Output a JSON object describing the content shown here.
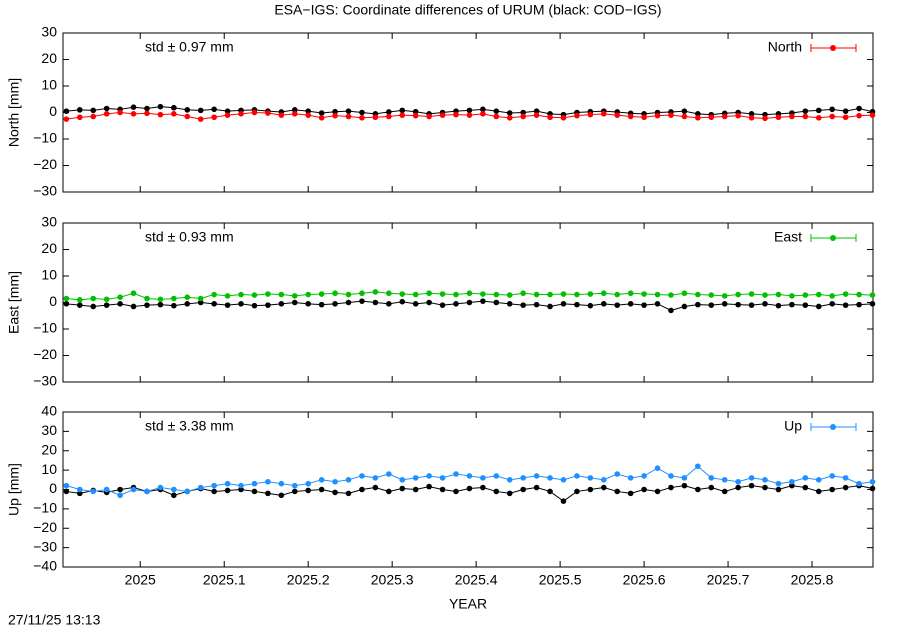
{
  "title": "ESA−IGS: Coordinate differences of URUM (black: COD−IGS)",
  "footer": "27/11/25 13:13",
  "chart_data": [
    {
      "type": "line",
      "ylabel": "North [mm]",
      "std_label": "std ± 0.97 mm",
      "xlim": [
        2024.908,
        2025.8726
      ],
      "xticks": [
        2025,
        2025.1,
        2025.2,
        2025.3,
        2025.4,
        2025.5,
        2025.6,
        2025.7,
        2025.8
      ],
      "ylim": [
        -30,
        30
      ],
      "yticks": [
        {
          "value": -30,
          "label": "−30"
        },
        {
          "value": -20,
          "label": "−20"
        },
        {
          "value": -10,
          "label": "−10"
        },
        0,
        10,
        20,
        30
      ],
      "x": [
        2024.912,
        2024.928,
        2024.944,
        2024.96,
        2024.976,
        2024.992,
        2025.008,
        2025.024,
        2025.04,
        2025.056,
        2025.072,
        2025.088,
        2025.104,
        2025.12,
        2025.136,
        2025.152,
        2025.168,
        2025.184,
        2025.2,
        2025.216,
        2025.232,
        2025.248,
        2025.264,
        2025.28,
        2025.296,
        2025.312,
        2025.328,
        2025.344,
        2025.36,
        2025.376,
        2025.392,
        2025.408,
        2025.424,
        2025.44,
        2025.456,
        2025.472,
        2025.488,
        2025.504,
        2025.52,
        2025.536,
        2025.552,
        2025.568,
        2025.584,
        2025.6,
        2025.616,
        2025.632,
        2025.648,
        2025.664,
        2025.68,
        2025.696,
        2025.712,
        2025.728,
        2025.744,
        2025.76,
        2025.776,
        2025.792,
        2025.808,
        2025.824,
        2025.84,
        2025.856,
        2025.872
      ],
      "series": [
        {
          "color": "#000000",
          "values": [
            0.5,
            1,
            0.8,
            1.5,
            1.2,
            2,
            1.5,
            2.2,
            1.8,
            1.0,
            0.8,
            1.2,
            0.5,
            0.8,
            1.0,
            0.5,
            0.2,
            1.0,
            0.5,
            -0.2,
            0.3,
            0.5,
            0,
            -0.5,
            0.2,
            0.8,
            0.3,
            -0.5,
            0,
            0.5,
            0.8,
            1.2,
            0.5,
            -0.2,
            0,
            0.5,
            -0.5,
            -0.8,
            0,
            0.3,
            0.5,
            0.2,
            -0.3,
            -0.5,
            0,
            0.2,
            0.5,
            -0.5,
            -0.8,
            -0.3,
            0,
            -0.5,
            -0.8,
            -0.5,
            -0.2,
            0.5,
            0.8,
            1.2,
            0.5,
            1.5,
            0.3
          ]
        },
        {
          "name": "North",
          "color": "#ff0000",
          "values": [
            -2.5,
            -1.8,
            -1.5,
            -0.5,
            0,
            -0.5,
            -0.3,
            -0.8,
            -0.5,
            -1.5,
            -2.5,
            -1.8,
            -1.0,
            -0.5,
            0,
            -0.2,
            -1.0,
            -0.5,
            -1.0,
            -2.0,
            -1.2,
            -1.5,
            -2.0,
            -1.8,
            -1.5,
            -1.0,
            -1.2,
            -1.5,
            -1.0,
            -0.8,
            -1.0,
            -0.5,
            -1.5,
            -2.0,
            -1.5,
            -1.0,
            -1.8,
            -2.0,
            -1.2,
            -0.8,
            -0.5,
            -1.0,
            -1.5,
            -1.8,
            -1.2,
            -1.0,
            -1.5,
            -2.0,
            -1.8,
            -1.5,
            -1.2,
            -2.0,
            -2.2,
            -1.8,
            -1.5,
            -1.5,
            -2.0,
            -1.5,
            -1.8,
            -1.2,
            -1.0
          ]
        }
      ]
    },
    {
      "type": "line",
      "ylabel": "East [mm]",
      "std_label": "std ± 0.93 mm",
      "xlim": [
        2024.908,
        2025.8726
      ],
      "xticks": [
        2025,
        2025.1,
        2025.2,
        2025.3,
        2025.4,
        2025.5,
        2025.6,
        2025.7,
        2025.8
      ],
      "ylim": [
        -30,
        30
      ],
      "yticks": [
        {
          "value": -30,
          "label": "−30"
        },
        {
          "value": -20,
          "label": "−20"
        },
        {
          "value": -10,
          "label": "−10"
        },
        0,
        10,
        20,
        30
      ],
      "x": [
        2024.912,
        2024.928,
        2024.944,
        2024.96,
        2024.976,
        2024.992,
        2025.008,
        2025.024,
        2025.04,
        2025.056,
        2025.072,
        2025.088,
        2025.104,
        2025.12,
        2025.136,
        2025.152,
        2025.168,
        2025.184,
        2025.2,
        2025.216,
        2025.232,
        2025.248,
        2025.264,
        2025.28,
        2025.296,
        2025.312,
        2025.328,
        2025.344,
        2025.36,
        2025.376,
        2025.392,
        2025.408,
        2025.424,
        2025.44,
        2025.456,
        2025.472,
        2025.488,
        2025.504,
        2025.52,
        2025.536,
        2025.552,
        2025.568,
        2025.584,
        2025.6,
        2025.616,
        2025.632,
        2025.648,
        2025.664,
        2025.68,
        2025.696,
        2025.712,
        2025.728,
        2025.744,
        2025.76,
        2025.776,
        2025.792,
        2025.808,
        2025.824,
        2025.84,
        2025.856,
        2025.872
      ],
      "series": [
        {
          "color": "#000000",
          "values": [
            -0.5,
            -1,
            -1.5,
            -1,
            -0.5,
            -1.5,
            -1,
            -0.8,
            -1.2,
            -0.5,
            0,
            -0.5,
            -1,
            -0.5,
            -1.2,
            -1,
            -0.5,
            0,
            -0.5,
            -0.8,
            -0.5,
            0,
            0.5,
            0,
            -0.5,
            0.3,
            -0.5,
            0,
            -1,
            -0.5,
            0,
            0.5,
            0,
            -0.5,
            -1,
            -0.8,
            -1.5,
            -0.5,
            -0.8,
            -1.2,
            -0.5,
            -1,
            -0.5,
            -1,
            -0.5,
            -3,
            -1.5,
            -0.8,
            -1,
            -0.5,
            -0.8,
            -1,
            -0.5,
            -1.2,
            -0.8,
            -1,
            -1.5,
            -0.5,
            -1,
            -0.8,
            -0.5
          ]
        },
        {
          "name": "East",
          "color": "#00c000",
          "values": [
            1.5,
            1,
            1.5,
            1.2,
            2,
            3.5,
            1.5,
            1.2,
            1.5,
            2,
            1.5,
            3,
            2.5,
            3,
            2.8,
            3.2,
            3,
            2.5,
            3,
            3.2,
            3.5,
            3,
            3.5,
            4,
            3.5,
            3.2,
            3,
            3.5,
            3.2,
            3,
            3.5,
            3.2,
            3,
            2.8,
            3.5,
            3,
            3,
            3.2,
            3,
            3.2,
            3.5,
            3,
            3.5,
            3.2,
            3,
            2.8,
            3.5,
            3,
            2.8,
            2.5,
            3,
            3.2,
            2.8,
            3,
            2.5,
            2.8,
            3,
            2.5,
            3.2,
            3,
            2.8
          ]
        }
      ]
    },
    {
      "type": "line",
      "ylabel": "Up [mm]",
      "std_label": "std ± 3.38 mm",
      "xlabel": "YEAR",
      "xlim": [
        2024.908,
        2025.8726
      ],
      "xticks": [
        2025,
        2025.1,
        2025.2,
        2025.3,
        2025.4,
        2025.5,
        2025.6,
        2025.7,
        2025.8
      ],
      "ylim": [
        -40,
        40
      ],
      "yticks": [
        {
          "value": -40,
          "label": "−40"
        },
        {
          "value": -30,
          "label": "−30"
        },
        {
          "value": -20,
          "label": "−20"
        },
        {
          "value": -10,
          "label": "−10"
        },
        0,
        10,
        20,
        30,
        40
      ],
      "x": [
        2024.912,
        2024.928,
        2024.944,
        2024.96,
        2024.976,
        2024.992,
        2025.008,
        2025.024,
        2025.04,
        2025.056,
        2025.072,
        2025.088,
        2025.104,
        2025.12,
        2025.136,
        2025.152,
        2025.168,
        2025.184,
        2025.2,
        2025.216,
        2025.232,
        2025.248,
        2025.264,
        2025.28,
        2025.296,
        2025.312,
        2025.328,
        2025.344,
        2025.36,
        2025.376,
        2025.392,
        2025.408,
        2025.424,
        2025.44,
        2025.456,
        2025.472,
        2025.488,
        2025.504,
        2025.52,
        2025.536,
        2025.552,
        2025.568,
        2025.584,
        2025.6,
        2025.616,
        2025.632,
        2025.648,
        2025.664,
        2025.68,
        2025.696,
        2025.712,
        2025.728,
        2025.744,
        2025.76,
        2025.776,
        2025.792,
        2025.808,
        2025.824,
        2025.84,
        2025.856,
        2025.872
      ],
      "series": [
        {
          "color": "#000000",
          "values": [
            -1,
            -2,
            -0.5,
            -1.5,
            0,
            1,
            -1,
            0,
            -3,
            -1,
            0.5,
            -1,
            -0.5,
            0,
            -1,
            -2,
            -3,
            -1,
            -0.5,
            0,
            -1.5,
            -2,
            0,
            1,
            -1,
            0.5,
            0,
            1.5,
            0,
            -1,
            0.5,
            1,
            -1,
            -2,
            0,
            1,
            -1,
            -6,
            -1,
            0,
            1,
            -1,
            -2,
            0,
            -1,
            1,
            2,
            0,
            1,
            -1,
            1,
            2,
            1,
            0,
            2,
            1,
            -1,
            0,
            1,
            2,
            0.5
          ]
        },
        {
          "name": "Up",
          "color": "#1e90ff",
          "values": [
            2,
            0,
            -1,
            0,
            -3,
            0,
            -1,
            1,
            0,
            -1,
            1,
            2,
            3,
            2,
            3,
            4,
            3,
            2,
            3,
            5,
            4,
            5,
            7,
            6,
            8,
            5,
            6,
            7,
            6,
            8,
            7,
            6,
            7,
            5,
            6,
            7,
            6,
            5,
            7,
            6,
            5,
            8,
            6,
            7,
            11,
            7,
            6,
            12,
            6,
            5,
            4,
            6,
            5,
            3,
            4,
            6,
            5,
            7,
            6,
            3,
            4
          ]
        }
      ]
    }
  ]
}
